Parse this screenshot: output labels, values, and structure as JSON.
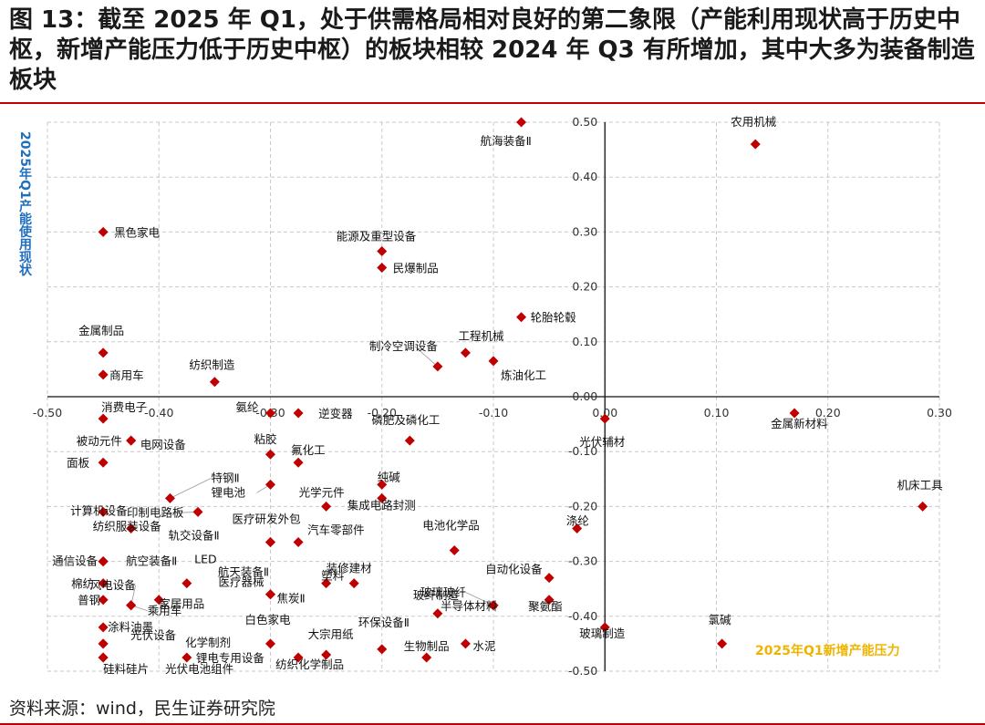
{
  "title": "图 13：截至 2025 年 Q1，处于供需格局相对良好的第二象限（产能利用现状高于历史中枢，新增产能压力低于历史中枢）的板块相较 2024 年 Q3 有所增加，其中大多为装备制造板块",
  "source": "资料来源：wind，民生证券研究院",
  "colors": {
    "marker": "#c00000",
    "title_rule": "#c00000",
    "ylabel": "#1f6fbf",
    "xlabel": "#f0b400",
    "grid": "#c8c8c8"
  },
  "chart_data": {
    "type": "scatter",
    "xlabel": "2025年Q1新增产能压力",
    "ylabel": "2025年Q1产能使用现状",
    "xlim": [
      -0.5,
      0.3
    ],
    "ylim": [
      -0.5,
      0.5
    ],
    "x_ticks": [
      "-0.50",
      "-0.40",
      "-0.30",
      "-0.20",
      "-0.10",
      "0.00",
      "0.10",
      "0.20",
      "0.30"
    ],
    "y_ticks": [
      "-0.50",
      "-0.40",
      "-0.30",
      "-0.20",
      "-0.10",
      "0.00",
      "0.10",
      "0.20",
      "0.30",
      "0.40",
      "0.50"
    ],
    "grid": true,
    "points": [
      {
        "label": "航海装备Ⅱ",
        "x": -0.075,
        "y": 0.5
      },
      {
        "label": "农用机械",
        "x": 0.135,
        "y": 0.46
      },
      {
        "label": "黑色家电",
        "x": -0.45,
        "y": 0.3
      },
      {
        "label": "能源及重型设备",
        "x": -0.2,
        "y": 0.265
      },
      {
        "label": "民爆制品",
        "x": -0.2,
        "y": 0.235
      },
      {
        "label": "轮胎轮毂",
        "x": -0.075,
        "y": 0.145
      },
      {
        "label": "金属制品",
        "x": -0.45,
        "y": 0.08
      },
      {
        "label": "工程机械",
        "x": -0.125,
        "y": 0.08
      },
      {
        "label": "制冷空调设备",
        "x": -0.15,
        "y": 0.055
      },
      {
        "label": "炼油化工",
        "x": -0.1,
        "y": 0.065
      },
      {
        "label": "商用车",
        "x": -0.45,
        "y": 0.04
      },
      {
        "label": "纺织制造",
        "x": -0.35,
        "y": 0.027
      },
      {
        "label": "金属新材料",
        "x": 0.17,
        "y": -0.03
      },
      {
        "label": "消费电子",
        "x": -0.45,
        "y": -0.04
      },
      {
        "label": "氨纶",
        "x": -0.3,
        "y": -0.03
      },
      {
        "label": "逆变器",
        "x": -0.275,
        "y": -0.03
      },
      {
        "label": "磷肥及磷化工",
        "x": -0.175,
        "y": -0.08
      },
      {
        "label": "光伏辅材",
        "x": 0.0,
        "y": -0.04
      },
      {
        "label": "被动元件",
        "x": -0.425,
        "y": -0.08
      },
      {
        "label": "电网设备",
        "x": -0.425,
        "y": -0.08
      },
      {
        "label": "粘胶",
        "x": -0.3,
        "y": -0.105
      },
      {
        "label": "氟化工",
        "x": -0.275,
        "y": -0.12
      },
      {
        "label": "面板",
        "x": -0.45,
        "y": -0.12
      },
      {
        "label": "纯碱",
        "x": -0.2,
        "y": -0.16
      },
      {
        "label": "光学元件",
        "x": -0.25,
        "y": -0.2
      },
      {
        "label": "集成电路封测",
        "x": -0.2,
        "y": -0.185
      },
      {
        "label": "机床工具",
        "x": 0.285,
        "y": -0.2
      },
      {
        "label": "特钢Ⅱ",
        "x": -0.39,
        "y": -0.185
      },
      {
        "label": "锂电池",
        "x": -0.3,
        "y": -0.16
      },
      {
        "label": "计算机设备",
        "x": -0.45,
        "y": -0.21
      },
      {
        "label": "印制电路板",
        "x": -0.365,
        "y": -0.21
      },
      {
        "label": "纺织服装设备",
        "x": -0.425,
        "y": -0.24
      },
      {
        "label": "医疗研发外包",
        "x": -0.3,
        "y": -0.265
      },
      {
        "label": "轨交设备Ⅱ",
        "x": -0.3,
        "y": -0.265
      },
      {
        "label": "汽车零部件",
        "x": -0.275,
        "y": -0.265
      },
      {
        "label": "涤纶",
        "x": -0.025,
        "y": -0.24
      },
      {
        "label": "电池化学品",
        "x": -0.135,
        "y": -0.28
      },
      {
        "label": "通信设备",
        "x": -0.45,
        "y": -0.3
      },
      {
        "label": "航空装备Ⅱ",
        "x": -0.45,
        "y": -0.3
      },
      {
        "label": "LED",
        "x": -0.45,
        "y": -0.3
      },
      {
        "label": "装修建材",
        "x": -0.25,
        "y": -0.34
      },
      {
        "label": "塑料",
        "x": -0.225,
        "y": -0.34
      },
      {
        "label": "自动化设备",
        "x": -0.05,
        "y": -0.33
      },
      {
        "label": "棉纺",
        "x": -0.45,
        "y": -0.34
      },
      {
        "label": "风电设备",
        "x": -0.425,
        "y": -0.38
      },
      {
        "label": "航天装备Ⅱ",
        "x": -0.375,
        "y": -0.34
      },
      {
        "label": "医疗器械",
        "x": -0.3,
        "y": -0.36
      },
      {
        "label": "家居用品",
        "x": -0.4,
        "y": -0.37
      },
      {
        "label": "焦炭Ⅱ",
        "x": -0.3,
        "y": -0.36
      },
      {
        "label": "玻纤制造",
        "x": -0.15,
        "y": -0.395
      },
      {
        "label": "普钢",
        "x": -0.45,
        "y": -0.37
      },
      {
        "label": "乘用车",
        "x": -0.425,
        "y": -0.38
      },
      {
        "label": "聚氨酯",
        "x": -0.05,
        "y": -0.37
      },
      {
        "label": "玻璃玻纤",
        "x": -0.1,
        "y": -0.38
      },
      {
        "label": "涂料油墨",
        "x": -0.45,
        "y": -0.42
      },
      {
        "label": "环保设备Ⅱ",
        "x": -0.2,
        "y": -0.46
      },
      {
        "label": "白色家电",
        "x": -0.3,
        "y": -0.45
      },
      {
        "label": "半导体材料",
        "x": -0.1,
        "y": -0.38
      },
      {
        "label": "水泥",
        "x": -0.125,
        "y": -0.45
      },
      {
        "label": "化学制剂",
        "x": -0.45,
        "y": -0.45
      },
      {
        "label": "光伏设备",
        "x": -0.45,
        "y": -0.45
      },
      {
        "label": "生物制品",
        "x": -0.16,
        "y": -0.475
      },
      {
        "label": "大宗用纸",
        "x": -0.25,
        "y": -0.47
      },
      {
        "label": "锂电专用设备",
        "x": -0.375,
        "y": -0.475
      },
      {
        "label": "纺织化学制品",
        "x": -0.275,
        "y": -0.475
      },
      {
        "label": "硅料硅片",
        "x": -0.45,
        "y": -0.475
      },
      {
        "label": "光伏电池组件",
        "x": -0.45,
        "y": -0.475
      },
      {
        "label": "玻璃制造",
        "x": 0.0,
        "y": -0.42
      },
      {
        "label": "氯碱",
        "x": 0.105,
        "y": -0.45
      }
    ]
  }
}
